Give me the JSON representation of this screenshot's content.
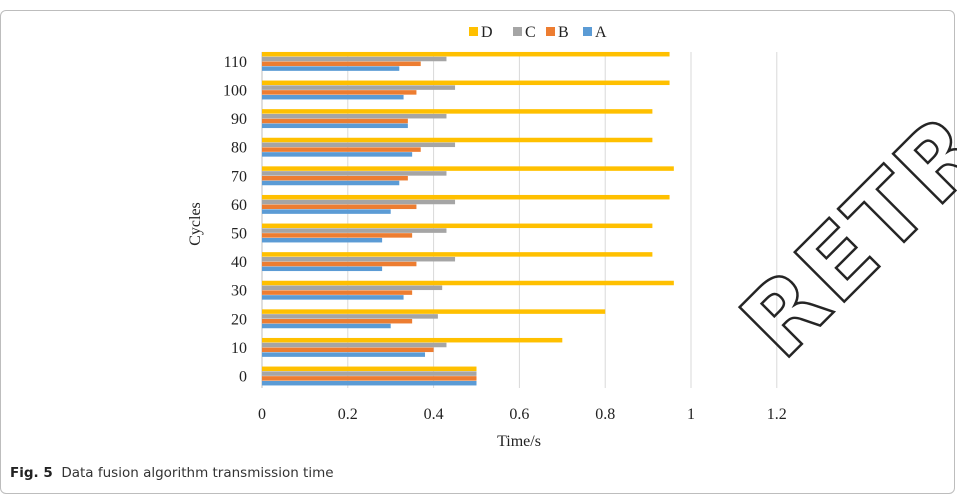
{
  "chart_data": {
    "type": "bar",
    "orientation": "horizontal",
    "categories": [
      "0",
      "10",
      "20",
      "30",
      "40",
      "50",
      "60",
      "70",
      "80",
      "90",
      "100",
      "110"
    ],
    "series": [
      {
        "name": "A",
        "color": "#5b9bd5",
        "values": [
          0.5,
          0.38,
          0.3,
          0.33,
          0.28,
          0.28,
          0.3,
          0.32,
          0.35,
          0.34,
          0.33,
          0.32
        ]
      },
      {
        "name": "B",
        "color": "#ed7d31",
        "values": [
          0.5,
          0.4,
          0.35,
          0.35,
          0.36,
          0.35,
          0.36,
          0.34,
          0.37,
          0.34,
          0.36,
          0.37
        ]
      },
      {
        "name": "C",
        "color": "#a5a5a5",
        "values": [
          0.5,
          0.43,
          0.41,
          0.42,
          0.45,
          0.43,
          0.45,
          0.43,
          0.45,
          0.43,
          0.45,
          0.43
        ]
      },
      {
        "name": "D",
        "color": "#ffc000",
        "values": [
          0.5,
          0.7,
          0.8,
          0.96,
          0.91,
          0.91,
          0.95,
          0.96,
          0.91,
          0.91,
          0.95,
          0.95
        ]
      }
    ],
    "xlabel": "Time/s",
    "ylabel": "Cycles",
    "xticks": [
      "0",
      "0.2",
      "0.4",
      "0.6",
      "0.8",
      "1",
      "1.2"
    ],
    "xlim": [
      0,
      1.2
    ],
    "grid": "vertical",
    "legend_position": "top",
    "legend_order": [
      "D",
      "C",
      "B",
      "A"
    ]
  },
  "caption": {
    "label": "Fig. 5",
    "text": "Data fusion algorithm transmission time"
  },
  "watermark": "RETRACTED ARTICLE"
}
